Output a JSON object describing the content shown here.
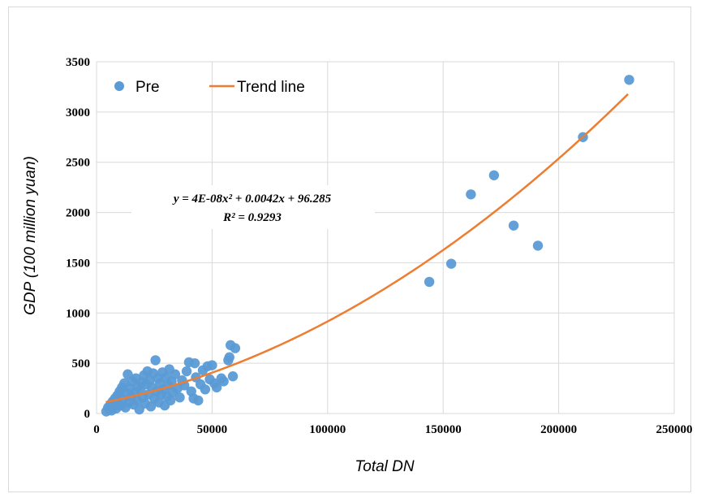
{
  "chart_data": {
    "type": "scatter",
    "title": "",
    "xlabel": "Total DN",
    "ylabel": "GDP (100 million yuan)",
    "xlim": [
      0,
      250000
    ],
    "ylim": [
      0,
      3500
    ],
    "x_ticks": [
      "0",
      "50000",
      "100000",
      "150000",
      "200000",
      "250000"
    ],
    "y_ticks": [
      "0",
      "500",
      "1000",
      "1500",
      "2000",
      "2500",
      "3000",
      "3500"
    ],
    "grid": "both",
    "legend_position": "top-left",
    "series": [
      {
        "name": "Pre",
        "kind": "points",
        "color": "#5b9bd5",
        "points": [
          [
            4200,
            20
          ],
          [
            5000,
            60
          ],
          [
            5500,
            40
          ],
          [
            6000,
            90
          ],
          [
            6500,
            30
          ],
          [
            7000,
            120
          ],
          [
            7500,
            70
          ],
          [
            8000,
            150
          ],
          [
            8500,
            50
          ],
          [
            9000,
            180
          ],
          [
            9500,
            100
          ],
          [
            10000,
            220
          ],
          [
            10500,
            80
          ],
          [
            11000,
            260
          ],
          [
            11500,
            140
          ],
          [
            12000,
            300
          ],
          [
            12500,
            60
          ],
          [
            13000,
            200
          ],
          [
            13500,
            390
          ],
          [
            14000,
            110
          ],
          [
            14500,
            250
          ],
          [
            15000,
            170
          ],
          [
            15500,
            320
          ],
          [
            16000,
            90
          ],
          [
            16500,
            210
          ],
          [
            17000,
            350
          ],
          [
            17500,
            130
          ],
          [
            18000,
            270
          ],
          [
            18500,
            40
          ],
          [
            19000,
            230
          ],
          [
            19500,
            310
          ],
          [
            20000,
            160
          ],
          [
            20500,
            380
          ],
          [
            21000,
            100
          ],
          [
            21500,
            290
          ],
          [
            22000,
            420
          ],
          [
            22500,
            190
          ],
          [
            23000,
            330
          ],
          [
            23500,
            70
          ],
          [
            24000,
            260
          ],
          [
            24500,
            400
          ],
          [
            25000,
            150
          ],
          [
            25500,
            530
          ],
          [
            26000,
            220
          ],
          [
            26500,
            350
          ],
          [
            27000,
            110
          ],
          [
            27500,
            300
          ],
          [
            28000,
            190
          ],
          [
            28500,
            410
          ],
          [
            29000,
            240
          ],
          [
            29500,
            80
          ],
          [
            30000,
            360
          ],
          [
            30500,
            170
          ],
          [
            31000,
            280
          ],
          [
            31500,
            440
          ],
          [
            32000,
            130
          ],
          [
            32500,
            320
          ],
          [
            33000,
            210
          ],
          [
            34000,
            390
          ],
          [
            35000,
            250
          ],
          [
            36000,
            160
          ],
          [
            37000,
            330
          ],
          [
            38000,
            280
          ],
          [
            39000,
            420
          ],
          [
            40000,
            510
          ],
          [
            41000,
            220
          ],
          [
            42000,
            150
          ],
          [
            42500,
            500
          ],
          [
            43000,
            360
          ],
          [
            44000,
            130
          ],
          [
            45000,
            290
          ],
          [
            46000,
            430
          ],
          [
            47000,
            240
          ],
          [
            48000,
            470
          ],
          [
            49000,
            340
          ],
          [
            50000,
            480
          ],
          [
            51000,
            300
          ],
          [
            52000,
            260
          ],
          [
            54000,
            350
          ],
          [
            55000,
            320
          ],
          [
            57000,
            530
          ],
          [
            57500,
            560
          ],
          [
            58000,
            680
          ],
          [
            59000,
            370
          ],
          [
            60000,
            650
          ],
          [
            144000,
            1310
          ],
          [
            153500,
            1490
          ],
          [
            162000,
            2180
          ],
          [
            172000,
            2370
          ],
          [
            180500,
            1870
          ],
          [
            191000,
            1670
          ],
          [
            210500,
            2750
          ],
          [
            230500,
            3320
          ]
        ]
      },
      {
        "name": "Trend line",
        "kind": "curve",
        "color": "#ed7d31",
        "equation": "y = 4E-08x² + 0.0042x + 96.285",
        "coefficients": {
          "a": 4e-08,
          "b": 0.0042,
          "c": 96.285
        },
        "x_range": [
          4000,
          230000
        ]
      }
    ],
    "annotations": {
      "equation": "y = 4E-08x² + 0.0042x + 96.285",
      "r_squared": "R² = 0.9293"
    }
  }
}
